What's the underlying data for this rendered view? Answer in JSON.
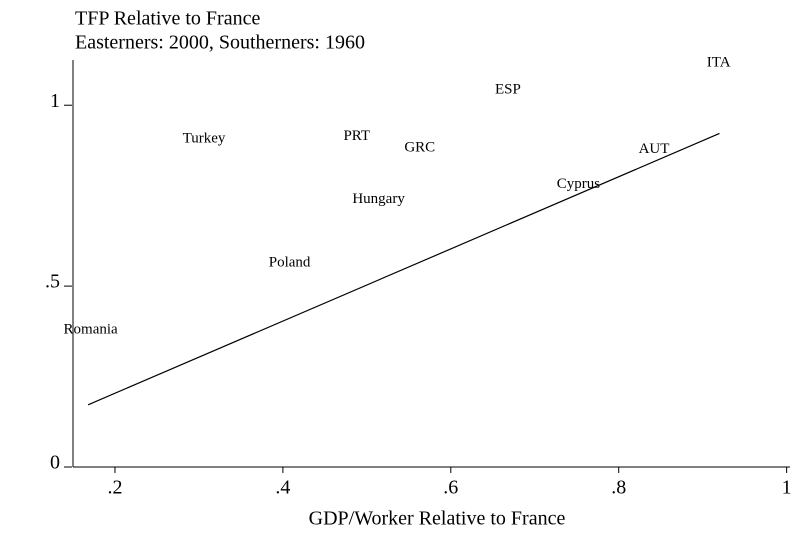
{
  "chart_data": {
    "type": "scatter",
    "title": "TFP Relative to France",
    "subtitle": "Easterners: 2000, Southerners: 1960",
    "x_label": "GDP/Worker Relative to France",
    "labels": [
      "Romania",
      "Turkey",
      "PRT",
      "GRC",
      "ESP",
      "ITA",
      "AUT",
      "Cyprus",
      "Hungary",
      "Poland"
    ],
    "x": [
      0.171,
      0.306,
      0.488,
      0.563,
      0.668,
      0.919,
      0.842,
      0.752,
      0.514,
      0.408
    ],
    "y": [
      0.378,
      0.906,
      0.914,
      0.881,
      1.042,
      1.117,
      0.878,
      0.781,
      0.739,
      0.564
    ],
    "fit": {
      "x": [
        0.168,
        0.92
      ],
      "y": [
        0.172,
        0.922
      ]
    },
    "color": "#000000",
    "xlim": [
      0.15,
      1.004
    ],
    "ylim": [
      0,
      1.125
    ],
    "xticks": [
      {
        "value": 0.2,
        "label": ".2"
      },
      {
        "value": 0.4,
        "label": ".4"
      },
      {
        "value": 0.6,
        "label": ".6"
      },
      {
        "value": 0.8,
        "label": ".8"
      },
      1
    ],
    "yticks": [
      0,
      {
        "value": 0.5,
        "label": ".5"
      },
      1
    ]
  }
}
